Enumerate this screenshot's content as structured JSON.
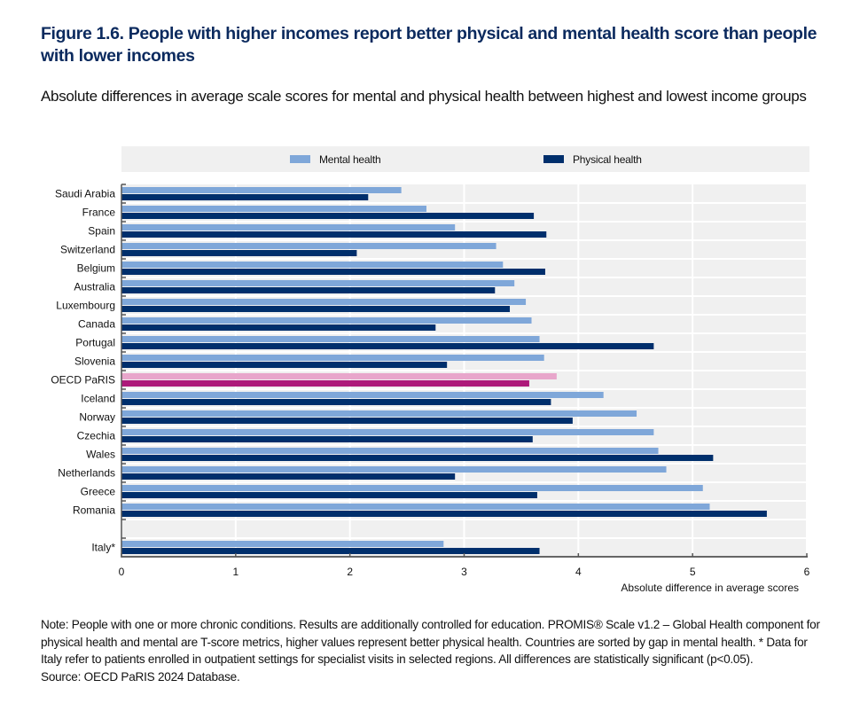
{
  "figure": {
    "title": "Figure 1.6. People with higher incomes report better physical and mental health score than people with lower incomes",
    "subtitle": "Absolute differences in average scale scores for mental and physical health between highest and lowest income groups",
    "note": "Note: People with one or more chronic conditions. Results are additionally controlled for education. PROMIS® Scale v1.2 – Global Health component for physical health and mental are T-score metrics, higher values represent better physical health. Countries are sorted by gap in mental health. * Data for Italy refer to patients enrolled in outpatient settings for specialist visits in selected regions. All differences are statistically significant (p<0.05).",
    "source": "Source: OECD PaRIS 2024 Database."
  },
  "colors": {
    "mental": "#7fa7d9",
    "physical": "#002f6c",
    "mental_highlight": "#e8a6cb",
    "physical_highlight": "#ad1a7a",
    "plot_background": "#f0f0f0",
    "title": "#0b2a5e"
  },
  "chart_data": {
    "type": "bar",
    "orientation": "horizontal",
    "title": "Figure 1.6. People with higher incomes report better physical and mental health score than people with lower incomes",
    "subtitle": "Absolute differences in average scale scores for mental and physical health between highest and lowest income groups",
    "xlabel": "Absolute difference in average scores",
    "ylabel": "",
    "xlim": [
      0,
      6
    ],
    "xticks": [
      "0",
      "1",
      "2",
      "3",
      "4",
      "5",
      "6"
    ],
    "grid": true,
    "legend_position": "top-center",
    "categories": [
      "Saudi Arabia",
      "France",
      "Spain",
      "Switzerland",
      "Belgium",
      "Australia",
      "Luxembourg",
      "Canada",
      "Portugal",
      "Slovenia",
      "OECD PaRIS",
      "Iceland",
      "Norway",
      "Czechia",
      "Wales",
      "Netherlands",
      "Greece",
      "Romania",
      "",
      "Italy*"
    ],
    "highlight_category": "OECD PaRIS",
    "series": [
      {
        "name": "Mental health",
        "values": [
          2.45,
          2.67,
          2.92,
          3.28,
          3.34,
          3.44,
          3.54,
          3.59,
          3.66,
          3.7,
          3.81,
          4.22,
          4.51,
          4.66,
          4.7,
          4.77,
          5.09,
          5.15,
          null,
          2.82
        ]
      },
      {
        "name": "Physical health",
        "values": [
          2.16,
          3.61,
          3.72,
          2.06,
          3.71,
          3.27,
          3.4,
          2.75,
          4.66,
          2.85,
          3.57,
          3.76,
          3.95,
          3.6,
          5.18,
          2.92,
          3.64,
          5.65,
          null,
          3.66
        ]
      }
    ]
  }
}
